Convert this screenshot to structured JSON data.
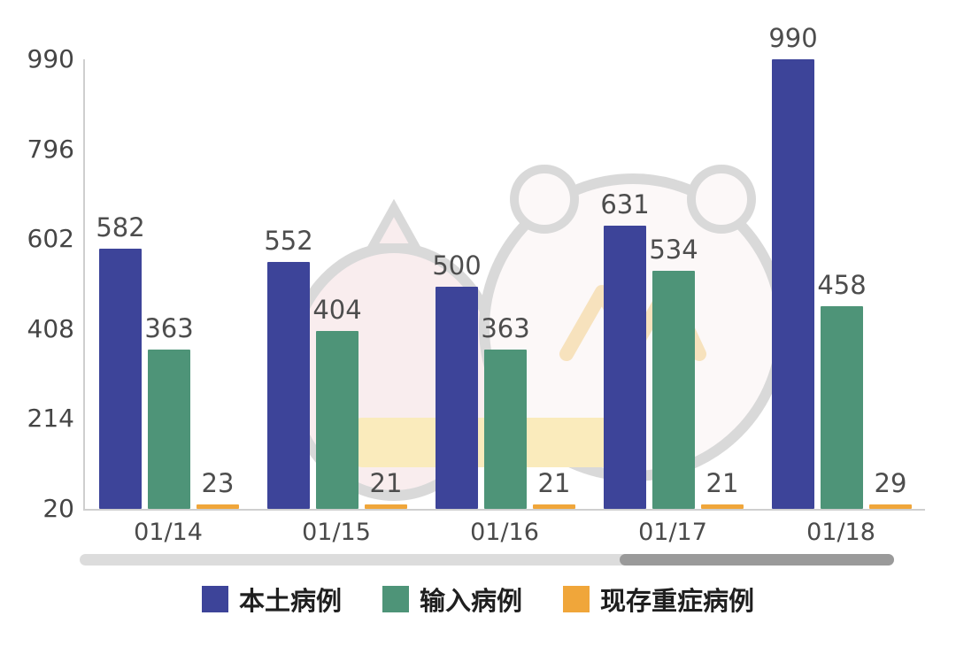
{
  "chart_data": {
    "type": "bar",
    "categories": [
      "01/14",
      "01/15",
      "01/16",
      "01/17",
      "01/18"
    ],
    "series": [
      {
        "name": "本土病例",
        "color": "#3d4499",
        "values": [
          582,
          552,
          500,
          631,
          990
        ]
      },
      {
        "name": "输入病例",
        "color": "#4e9478",
        "values": [
          363,
          404,
          363,
          534,
          458
        ]
      },
      {
        "name": "现存重症病例",
        "color": "#f0a63a",
        "values": [
          23,
          21,
          21,
          21,
          29
        ]
      }
    ],
    "title": "",
    "xlabel": "",
    "ylabel": "",
    "ylim": [
      20,
      990
    ],
    "yticks": [
      990,
      796,
      602,
      408,
      214,
      20
    ],
    "grid": false,
    "legend_position": "bottom"
  },
  "colors": {
    "axis": "#cfcfcf",
    "tick_text": "#454545",
    "value_text": "#4d4d4d",
    "scrollbar_track": "#dcdcdc",
    "scrollbar_thumb": "#9a9a9a",
    "background": "#ffffff"
  }
}
